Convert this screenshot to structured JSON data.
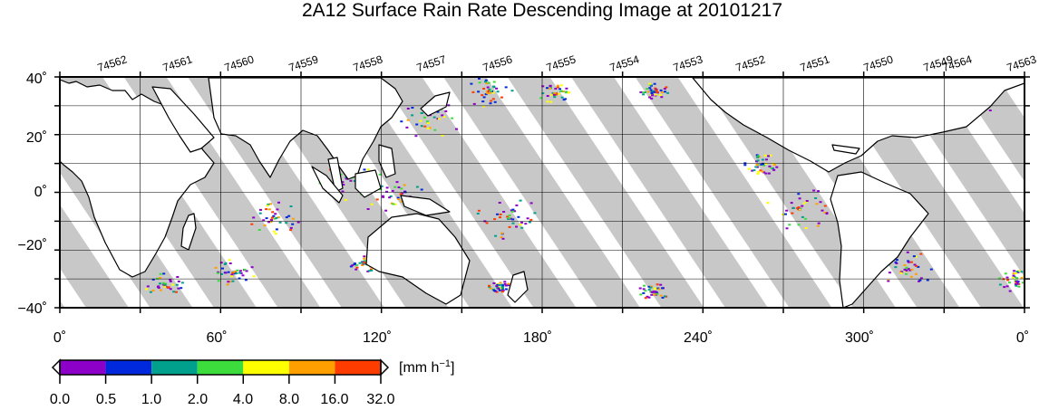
{
  "title": "2A12 Surface Rain Rate Descending Image at 20101217",
  "orbit_numbers": [
    "74562",
    "74561",
    "74560",
    "74559",
    "74558",
    "74557",
    "74556",
    "74555",
    "74554",
    "74553",
    "74552",
    "74551",
    "74550",
    "74549",
    "74564",
    "74563"
  ],
  "map": {
    "lat_range": [
      -40,
      40
    ],
    "lon_range": [
      0,
      360
    ],
    "gridlines": true,
    "lat_labels": [
      "40˚",
      "20˚",
      "0˚",
      "−20˚",
      "−40˚"
    ],
    "lon_labels": [
      "0˚",
      "60˚",
      "120˚",
      "180˚",
      "240˚",
      "300˚",
      "0˚"
    ],
    "swath_color": "#c8c8c8",
    "coast_color": "#000000",
    "land_color": "#ffffff"
  },
  "colorbar": {
    "unit_label": "[mm h",
    "unit_sup": "−1",
    "unit_close": "]",
    "tick_labels": [
      "0.0",
      "0.5",
      "1.0",
      "2.0",
      "4.0",
      "8.0",
      "16.0",
      "32.0"
    ],
    "colors": [
      "#8c00c8",
      "#0028dc",
      "#00a08c",
      "#3cdc3c",
      "#ffff00",
      "#ffa000",
      "#ff3c00"
    ]
  }
}
